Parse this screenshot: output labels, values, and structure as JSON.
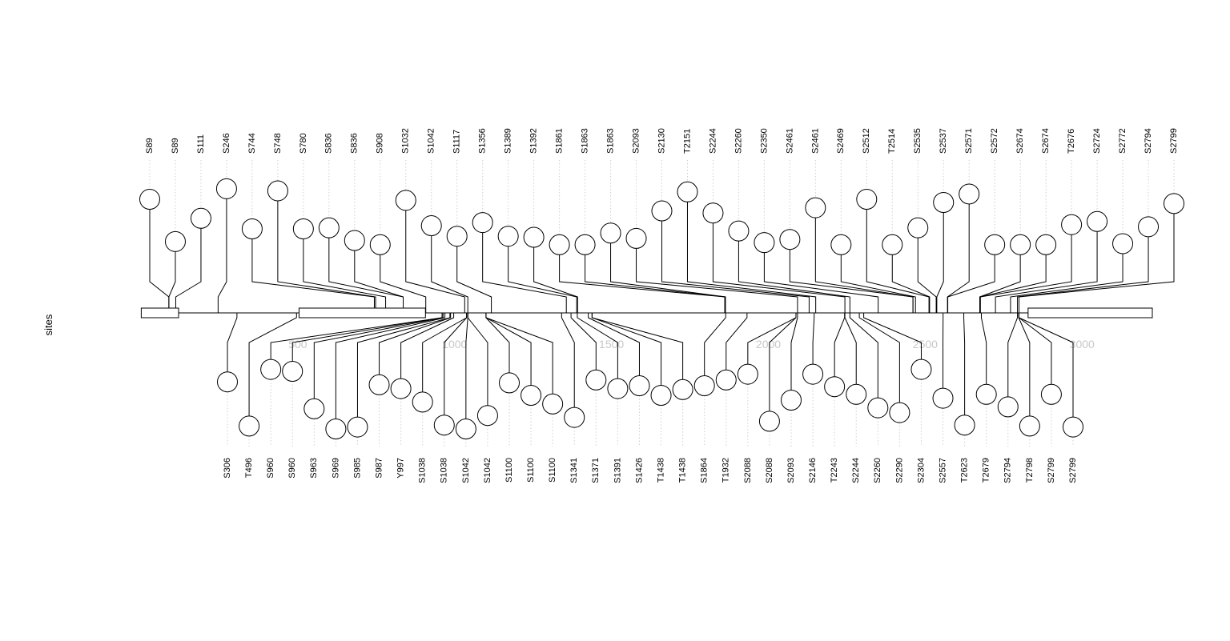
{
  "chart_data": {
    "type": "lollipop",
    "ylabel": "sites",
    "x_ticks": [
      500,
      1000,
      1500,
      2000,
      2500,
      3000
    ],
    "x_range": [
      0,
      3224
    ],
    "domains": [
      {
        "start": 1,
        "end": 120
      },
      {
        "start": 504,
        "end": 907
      },
      {
        "start": 2828,
        "end": 3224
      }
    ],
    "top_sites": [
      {
        "label": "S89",
        "pos": 89,
        "level": 0.78
      },
      {
        "label": "S89",
        "pos": 89,
        "level": 0.38
      },
      {
        "label": "S111",
        "pos": 111,
        "level": 0.6
      },
      {
        "label": "S246",
        "pos": 246,
        "level": 0.88
      },
      {
        "label": "S744",
        "pos": 744,
        "level": 0.5
      },
      {
        "label": "S748",
        "pos": 748,
        "level": 0.86
      },
      {
        "label": "S780",
        "pos": 780,
        "level": 0.5
      },
      {
        "label": "S836",
        "pos": 836,
        "level": 0.51
      },
      {
        "label": "S836",
        "pos": 836,
        "level": 0.39
      },
      {
        "label": "S908",
        "pos": 908,
        "level": 0.35
      },
      {
        "label": "S1032",
        "pos": 1032,
        "level": 0.77
      },
      {
        "label": "S1042",
        "pos": 1042,
        "level": 0.53
      },
      {
        "label": "S1117",
        "pos": 1117,
        "level": 0.43
      },
      {
        "label": "S1356",
        "pos": 1356,
        "level": 0.56
      },
      {
        "label": "S1389",
        "pos": 1389,
        "level": 0.43
      },
      {
        "label": "S1392",
        "pos": 1392,
        "level": 0.42
      },
      {
        "label": "S1861",
        "pos": 1861,
        "level": 0.35
      },
      {
        "label": "S1863",
        "pos": 1863,
        "level": 0.35
      },
      {
        "label": "S1863",
        "pos": 1863,
        "level": 0.46
      },
      {
        "label": "S2093",
        "pos": 2093,
        "level": 0.41
      },
      {
        "label": "S2130",
        "pos": 2130,
        "level": 0.67
      },
      {
        "label": "T2151",
        "pos": 2151,
        "level": 0.85
      },
      {
        "label": "S2244",
        "pos": 2244,
        "level": 0.65
      },
      {
        "label": "S2260",
        "pos": 2260,
        "level": 0.48
      },
      {
        "label": "S2350",
        "pos": 2350,
        "level": 0.37
      },
      {
        "label": "S2461",
        "pos": 2461,
        "level": 0.4
      },
      {
        "label": "S2461",
        "pos": 2461,
        "level": 0.7
      },
      {
        "label": "S2469",
        "pos": 2469,
        "level": 0.35
      },
      {
        "label": "S2512",
        "pos": 2512,
        "level": 0.78
      },
      {
        "label": "T2514",
        "pos": 2514,
        "level": 0.35
      },
      {
        "label": "S2535",
        "pos": 2535,
        "level": 0.51
      },
      {
        "label": "S2537",
        "pos": 2537,
        "level": 0.75
      },
      {
        "label": "S2571",
        "pos": 2571,
        "level": 0.83
      },
      {
        "label": "S2572",
        "pos": 2572,
        "level": 0.35
      },
      {
        "label": "S2674",
        "pos": 2674,
        "level": 0.35
      },
      {
        "label": "S2674",
        "pos": 2674,
        "level": 0.35
      },
      {
        "label": "T2676",
        "pos": 2676,
        "level": 0.54
      },
      {
        "label": "S2724",
        "pos": 2724,
        "level": 0.57
      },
      {
        "label": "S2772",
        "pos": 2772,
        "level": 0.36
      },
      {
        "label": "S2794",
        "pos": 2794,
        "level": 0.52
      },
      {
        "label": "S2799",
        "pos": 2799,
        "level": 0.74
      }
    ],
    "bottom_sites": [
      {
        "label": "S306",
        "pos": 306,
        "level": 0.41
      },
      {
        "label": "T496",
        "pos": 496,
        "level": 0.87
      },
      {
        "label": "S960",
        "pos": 960,
        "level": 0.28
      },
      {
        "label": "S960",
        "pos": 960,
        "level": 0.3
      },
      {
        "label": "S963",
        "pos": 963,
        "level": 0.69
      },
      {
        "label": "S969",
        "pos": 969,
        "level": 0.9
      },
      {
        "label": "S985",
        "pos": 985,
        "level": 0.88
      },
      {
        "label": "S987",
        "pos": 987,
        "level": 0.44
      },
      {
        "label": "Y997",
        "pos": 997,
        "level": 0.48
      },
      {
        "label": "S1038",
        "pos": 1038,
        "level": 0.62
      },
      {
        "label": "S1038",
        "pos": 1038,
        "level": 0.86
      },
      {
        "label": "S1042",
        "pos": 1042,
        "level": 0.9
      },
      {
        "label": "S1042",
        "pos": 1042,
        "level": 0.76
      },
      {
        "label": "S1100",
        "pos": 1100,
        "level": 0.42
      },
      {
        "label": "S1100",
        "pos": 1100,
        "level": 0.55
      },
      {
        "label": "S1100",
        "pos": 1100,
        "level": 0.64
      },
      {
        "label": "S1341",
        "pos": 1341,
        "level": 0.78
      },
      {
        "label": "S1371",
        "pos": 1371,
        "level": 0.39
      },
      {
        "label": "S1391",
        "pos": 1391,
        "level": 0.48
      },
      {
        "label": "S1426",
        "pos": 1426,
        "level": 0.45
      },
      {
        "label": "T1438",
        "pos": 1438,
        "level": 0.55
      },
      {
        "label": "T1438",
        "pos": 1438,
        "level": 0.49
      },
      {
        "label": "S1864",
        "pos": 1864,
        "level": 0.45
      },
      {
        "label": "T1932",
        "pos": 1932,
        "level": 0.39
      },
      {
        "label": "S2088",
        "pos": 2088,
        "level": 0.33
      },
      {
        "label": "S2088",
        "pos": 2088,
        "level": 0.82
      },
      {
        "label": "S2093",
        "pos": 2093,
        "level": 0.6
      },
      {
        "label": "S2146",
        "pos": 2146,
        "level": 0.33
      },
      {
        "label": "T2243",
        "pos": 2243,
        "level": 0.46
      },
      {
        "label": "S2244",
        "pos": 2244,
        "level": 0.54
      },
      {
        "label": "S2260",
        "pos": 2260,
        "level": 0.68
      },
      {
        "label": "S2290",
        "pos": 2290,
        "level": 0.73
      },
      {
        "label": "S2304",
        "pos": 2304,
        "level": 0.28
      },
      {
        "label": "S2557",
        "pos": 2557,
        "level": 0.58
      },
      {
        "label": "T2623",
        "pos": 2623,
        "level": 0.86
      },
      {
        "label": "T2679",
        "pos": 2679,
        "level": 0.54
      },
      {
        "label": "S2794",
        "pos": 2794,
        "level": 0.67
      },
      {
        "label": "T2798",
        "pos": 2798,
        "level": 0.87
      },
      {
        "label": "S2799",
        "pos": 2799,
        "level": 0.54
      },
      {
        "label": "S2799",
        "pos": 2799,
        "level": 0.88
      }
    ]
  }
}
